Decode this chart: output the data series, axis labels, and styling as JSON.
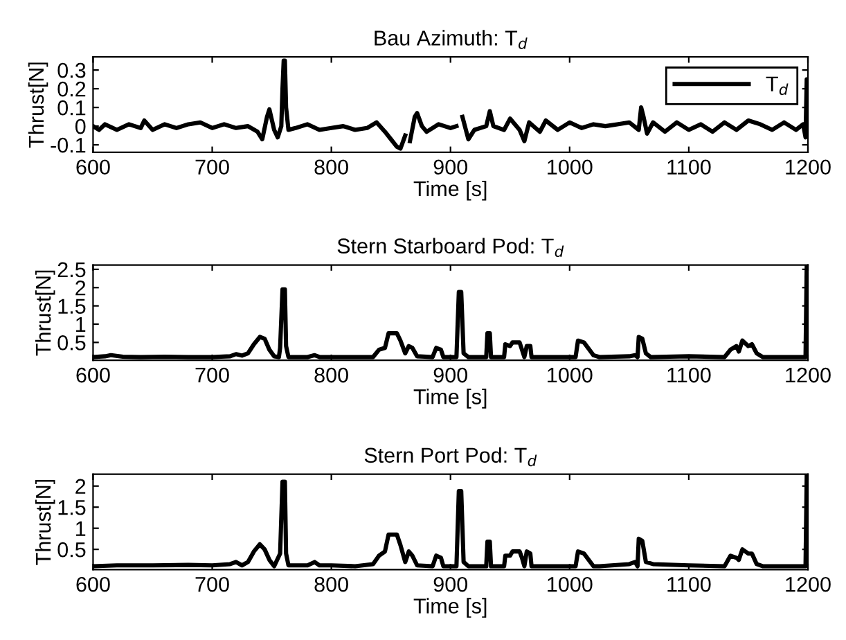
{
  "chart_data": [
    {
      "type": "line",
      "title": "Bau Azimuth: T$_{d}$",
      "xlabel": "Time [s]",
      "ylabel": "Thrust[N]",
      "xlim": [
        600,
        1200
      ],
      "xticks": [
        600,
        700,
        800,
        900,
        1000,
        1100,
        1200
      ],
      "ylim": [
        -0.14,
        0.37
      ],
      "yticks": [
        -0.1,
        0,
        0.1,
        0.2,
        0.3
      ],
      "legend": "top right",
      "grid": false,
      "series": [
        {
          "name": "T$_{d}$",
          "color": "#000000",
          "x": [
            600,
            605,
            610,
            620,
            630,
            640,
            643,
            650,
            660,
            670,
            680,
            690,
            700,
            710,
            720,
            730,
            738,
            742,
            746,
            748,
            752,
            755,
            758,
            759,
            760,
            761,
            762,
            764,
            770,
            780,
            790,
            800,
            810,
            820,
            830,
            838,
            845,
            850,
            855,
            858,
            862,
            864,
            866,
            870,
            872,
            876,
            880,
            890,
            900,
            905,
            907,
            909,
            910,
            915,
            920,
            930,
            933,
            936,
            945,
            950,
            958,
            962,
            966,
            975,
            980,
            990,
            1000,
            1010,
            1020,
            1030,
            1040,
            1050,
            1058,
            1060,
            1062,
            1065,
            1070,
            1080,
            1090,
            1100,
            1110,
            1120,
            1130,
            1140,
            1150,
            1160,
            1170,
            1180,
            1190,
            1196,
            1198,
            1199,
            1200
          ],
          "values": [
            0,
            -0.02,
            0.01,
            -0.02,
            0.01,
            -0.01,
            0.03,
            -0.02,
            0.01,
            -0.01,
            0.01,
            0.02,
            -0.01,
            0.01,
            -0.01,
            0.0,
            -0.03,
            -0.07,
            0.05,
            0.09,
            -0.02,
            -0.06,
            0.0,
            0.2,
            0.35,
            0.35,
            0.1,
            -0.02,
            -0.01,
            0.01,
            -0.02,
            -0.01,
            0.0,
            -0.02,
            -0.01,
            0.02,
            -0.03,
            -0.07,
            -0.11,
            -0.12,
            -0.05,
            null,
            -0.08,
            0.05,
            0.07,
            0.0,
            -0.03,
            0.01,
            -0.01,
            0.0,
            null,
            null,
            0.05,
            -0.07,
            -0.02,
            0.0,
            0.08,
            0.0,
            -0.02,
            0.04,
            -0.02,
            -0.08,
            0.02,
            -0.03,
            0.03,
            -0.02,
            0.02,
            -0.01,
            0.01,
            0.0,
            0.01,
            0.02,
            -0.02,
            0.1,
            0.05,
            -0.04,
            0.02,
            -0.03,
            0.02,
            -0.02,
            0.01,
            -0.03,
            0.02,
            -0.02,
            0.03,
            0.01,
            -0.02,
            0.02,
            -0.02,
            0.01,
            -0.06,
            0.25,
            0.25
          ]
        }
      ]
    },
    {
      "type": "line",
      "title": "Stern Starboard Pod: T$_{d}$",
      "xlabel": "Time [s]",
      "ylabel": "Thrust[N]",
      "xlim": [
        600,
        1200
      ],
      "xticks": [
        600,
        700,
        800,
        900,
        1000,
        1100,
        1200
      ],
      "ylim": [
        0.01,
        2.62
      ],
      "yticks": [
        0.5,
        1,
        1.5,
        2,
        2.5
      ],
      "grid": false,
      "series": [
        {
          "color": "#000000",
          "x": [
            600,
            610,
            615,
            625,
            640,
            660,
            680,
            700,
            715,
            720,
            725,
            730,
            735,
            740,
            744,
            748,
            752,
            756,
            757,
            759,
            761,
            762,
            764,
            780,
            786,
            790,
            800,
            820,
            835,
            840,
            845,
            848,
            855,
            858,
            862,
            865,
            868,
            872,
            885,
            888,
            892,
            894,
            905,
            907,
            909,
            911,
            915,
            930,
            931,
            933,
            934,
            945,
            946,
            950,
            952,
            958,
            960,
            962,
            964,
            967,
            968,
            1005,
            1007,
            1012,
            1020,
            1025,
            1050,
            1055,
            1057,
            1058,
            1061,
            1064,
            1068,
            1100,
            1130,
            1135,
            1140,
            1142,
            1145,
            1150,
            1153,
            1157,
            1162,
            1180,
            1198,
            1199,
            1200
          ],
          "values": [
            0.1,
            0.12,
            0.15,
            0.11,
            0.1,
            0.11,
            0.1,
            0.1,
            0.12,
            0.18,
            0.14,
            0.2,
            0.45,
            0.65,
            0.6,
            0.3,
            0.12,
            0.1,
            0.35,
            1.95,
            1.95,
            0.4,
            0.1,
            0.1,
            0.15,
            0.1,
            0.1,
            0.1,
            0.1,
            0.3,
            0.35,
            0.75,
            0.75,
            0.55,
            0.2,
            0.4,
            0.35,
            0.12,
            0.1,
            0.35,
            0.3,
            0.1,
            0.1,
            1.88,
            1.88,
            0.2,
            0.1,
            0.1,
            0.75,
            0.75,
            0.1,
            0.1,
            0.45,
            0.4,
            0.5,
            0.5,
            0.3,
            0.1,
            0.4,
            0.4,
            0.1,
            0.1,
            0.55,
            0.5,
            0.15,
            0.1,
            0.12,
            0.15,
            0.1,
            0.65,
            0.6,
            0.2,
            0.1,
            0.12,
            0.1,
            0.3,
            0.4,
            0.25,
            0.55,
            0.4,
            0.45,
            0.2,
            0.1,
            0.1,
            0.1,
            2.6,
            2.6
          ]
        }
      ]
    },
    {
      "type": "line",
      "title": "Stern Port Pod: T$_{d}$",
      "xlabel": "Time [s]",
      "ylabel": "Thrust[N]",
      "xlim": [
        600,
        1200
      ],
      "xticks": [
        600,
        700,
        800,
        900,
        1000,
        1100,
        1200
      ],
      "ylim": [
        0.02,
        2.28
      ],
      "yticks": [
        0.5,
        1,
        1.5,
        2
      ],
      "grid": false,
      "series": [
        {
          "color": "#000000",
          "x": [
            600,
            620,
            650,
            680,
            700,
            715,
            720,
            725,
            730,
            735,
            740,
            744,
            748,
            752,
            757,
            759,
            761,
            762,
            764,
            780,
            786,
            790,
            800,
            820,
            835,
            840,
            845,
            848,
            855,
            858,
            862,
            865,
            868,
            872,
            885,
            888,
            892,
            894,
            905,
            907,
            909,
            911,
            915,
            930,
            931,
            933,
            934,
            945,
            946,
            950,
            952,
            958,
            960,
            962,
            964,
            967,
            968,
            1005,
            1007,
            1012,
            1020,
            1025,
            1050,
            1055,
            1057,
            1058,
            1061,
            1064,
            1070,
            1100,
            1130,
            1135,
            1140,
            1142,
            1145,
            1150,
            1153,
            1157,
            1162,
            1180,
            1198,
            1199
          ],
          "values": [
            0.1,
            0.12,
            0.12,
            0.13,
            0.12,
            0.15,
            0.2,
            0.12,
            0.2,
            0.45,
            0.62,
            0.5,
            0.25,
            0.1,
            0.4,
            2.1,
            2.1,
            0.4,
            0.12,
            0.12,
            0.2,
            0.12,
            0.12,
            0.1,
            0.15,
            0.35,
            0.45,
            0.85,
            0.85,
            0.6,
            0.2,
            0.45,
            0.35,
            0.12,
            0.1,
            0.35,
            0.3,
            0.1,
            0.1,
            1.88,
            1.88,
            0.2,
            0.1,
            0.1,
            0.68,
            0.68,
            0.1,
            0.1,
            0.35,
            0.35,
            0.45,
            0.45,
            0.3,
            0.1,
            0.45,
            0.4,
            0.1,
            0.1,
            0.45,
            0.4,
            0.1,
            0.1,
            0.15,
            0.2,
            0.1,
            0.75,
            0.7,
            0.2,
            0.15,
            0.12,
            0.1,
            0.35,
            0.3,
            0.25,
            0.5,
            0.4,
            0.4,
            0.15,
            0.1,
            0.1,
            0.1,
            2.25
          ]
        }
      ]
    }
  ]
}
